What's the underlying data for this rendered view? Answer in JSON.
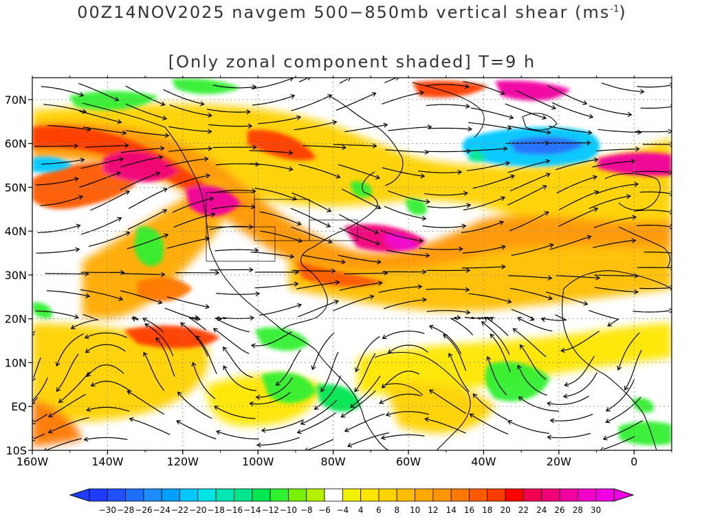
{
  "title": {
    "line1_prefix": "00Z14NOV2025 navgem 500−850mb vertical shear (ms",
    "line1_sup": "-1",
    "line1_suffix": ")",
    "line2": "[Only zonal component shaded] T=9 h"
  },
  "map": {
    "lon_range": [
      -160,
      10
    ],
    "lat_range": [
      -10,
      75
    ],
    "x_ticks": [
      "160W",
      "140W",
      "120W",
      "100W",
      "80W",
      "60W",
      "40W",
      "20W",
      "0"
    ],
    "y_ticks": [
      "70N",
      "60N",
      "50N",
      "40N",
      "30N",
      "20N",
      "10N",
      "EQ",
      "10S"
    ]
  },
  "colorbar": {
    "labels": [
      "-30",
      "-28",
      "-26",
      "-24",
      "-22",
      "-20",
      "-18",
      "-16",
      "-14",
      "-12",
      "-10",
      "-8",
      "-6",
      "-4",
      "4",
      "6",
      "8",
      "10",
      "12",
      "14",
      "16",
      "18",
      "20",
      "22",
      "24",
      "26",
      "28",
      "30"
    ],
    "colors": [
      "#1e3cff",
      "#2050ff",
      "#1e6eff",
      "#1e8cff",
      "#00a0ff",
      "#00c8ff",
      "#00e6e6",
      "#00e6b4",
      "#00e68c",
      "#00e650",
      "#32f032",
      "#78f000",
      "#b4f000",
      "#ffffff",
      "#f0f000",
      "#ffe600",
      "#ffd200",
      "#ffbe00",
      "#ffaa00",
      "#ff9600",
      "#ff7800",
      "#ff5a00",
      "#ff3c00",
      "#ff0000",
      "#f00050",
      "#f00078",
      "#f000a0",
      "#f000c8",
      "#f000e0"
    ]
  }
}
